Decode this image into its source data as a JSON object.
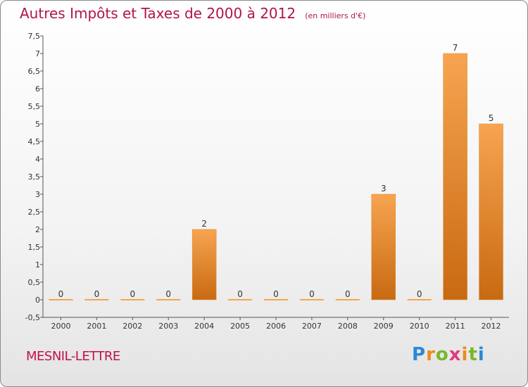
{
  "header": {
    "title": "Autres Impôts et Taxes de 2000 à 2012",
    "unit": "(en milliers d'€)"
  },
  "commune": "MESNIL-LETTRE",
  "logo": {
    "letters": [
      "P",
      "r",
      "o",
      "x",
      "i",
      "t",
      "i"
    ]
  },
  "chart_data": {
    "type": "bar",
    "title": "Autres Impôts et Taxes de 2000 à 2012",
    "subtitle": "(en milliers d'€)",
    "categories": [
      "2000",
      "2001",
      "2002",
      "2003",
      "2004",
      "2005",
      "2006",
      "2007",
      "2008",
      "2009",
      "2010",
      "2011",
      "2012"
    ],
    "values": [
      0,
      0,
      0,
      0,
      2,
      0,
      0,
      0,
      0,
      3,
      0,
      7,
      5
    ],
    "data_labels": [
      "0",
      "0",
      "0",
      "0",
      "2",
      "0",
      "0",
      "0",
      "0",
      "3",
      "0",
      "7",
      "5"
    ],
    "ylim": [
      -0.5,
      7.5
    ],
    "y_ticks": [
      -0.5,
      0,
      0.5,
      1,
      1.5,
      2,
      2.5,
      3,
      3.5,
      4,
      4.5,
      5,
      5.5,
      6,
      6.5,
      7,
      7.5
    ],
    "y_tick_labels": [
      "-0,5",
      "0",
      "0,5",
      "1",
      "1,5",
      "2",
      "2,5",
      "3",
      "3,5",
      "4",
      "4,5",
      "5",
      "5,5",
      "6",
      "6,5",
      "7",
      "7,5"
    ],
    "grid": false,
    "colors": {
      "bar_light": "#f7a450",
      "bar_dark": "#c86a12",
      "axis": "#555555"
    }
  }
}
